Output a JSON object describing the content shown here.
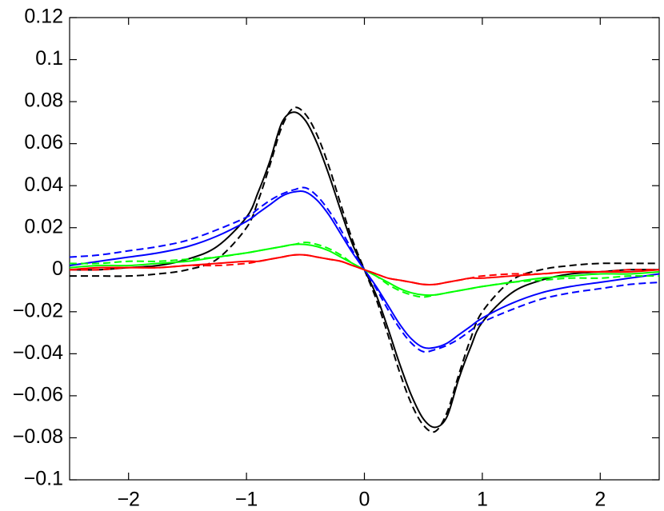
{
  "chart_data": {
    "type": "line",
    "x": [
      -2.5,
      -2.25,
      -2,
      -1.75,
      -1.5,
      -1.25,
      -1,
      -0.9,
      -0.8,
      -0.7,
      -0.6,
      -0.5,
      -0.4,
      -0.3,
      -0.2,
      -0.1,
      0,
      0.1,
      0.2,
      0.3,
      0.4,
      0.5,
      0.6,
      0.7,
      0.8,
      0.9,
      1,
      1.25,
      1.5,
      1.75,
      2,
      2.25,
      2.5
    ],
    "series": [
      {
        "color": "#000000",
        "dashed": false,
        "values": [
          0,
          0,
          0.001,
          0.002,
          0.005,
          0.011,
          0.025,
          0.037,
          0.052,
          0.07,
          0.075,
          0.071,
          0.06,
          0.045,
          0.028,
          0.012,
          0,
          -0.012,
          -0.028,
          -0.045,
          -0.06,
          -0.071,
          -0.075,
          -0.07,
          -0.052,
          -0.037,
          -0.025,
          -0.011,
          -0.005,
          -0.002,
          -0.001,
          0,
          0
        ]
      },
      {
        "color": "#000000",
        "dashed": true,
        "values": [
          -0.003,
          -0.003,
          -0.003,
          -0.002,
          0,
          0.005,
          0.02,
          0.033,
          0.05,
          0.068,
          0.077,
          0.074,
          0.064,
          0.049,
          0.031,
          0.014,
          0,
          -0.014,
          -0.031,
          -0.049,
          -0.064,
          -0.074,
          -0.077,
          -0.068,
          -0.05,
          -0.033,
          -0.02,
          -0.005,
          0,
          0.002,
          0.003,
          0.003,
          0.003
        ]
      },
      {
        "color": "#0000ff",
        "dashed": false,
        "values": [
          0.002,
          0.004,
          0.006,
          0.008,
          0.011,
          0.016,
          0.023,
          0.027,
          0.031,
          0.035,
          0.037,
          0.037,
          0.033,
          0.026,
          0.017,
          0.008,
          0,
          -0.008,
          -0.017,
          -0.026,
          -0.033,
          -0.037,
          -0.037,
          -0.035,
          -0.031,
          -0.027,
          -0.023,
          -0.016,
          -0.011,
          -0.008,
          -0.006,
          -0.004,
          -0.002
        ]
      },
      {
        "color": "#0000ff",
        "dashed": true,
        "values": [
          0.006,
          0.007,
          0.009,
          0.011,
          0.014,
          0.019,
          0.025,
          0.029,
          0.033,
          0.036,
          0.038,
          0.039,
          0.035,
          0.028,
          0.019,
          0.009,
          0,
          -0.009,
          -0.019,
          -0.028,
          -0.035,
          -0.039,
          -0.038,
          -0.036,
          -0.033,
          -0.029,
          -0.025,
          -0.019,
          -0.014,
          -0.011,
          -0.009,
          -0.007,
          -0.006
        ]
      },
      {
        "color": "#00ff00",
        "dashed": false,
        "values": [
          0.001,
          0.002,
          0.002,
          0.003,
          0.004,
          0.006,
          0.008,
          0.009,
          0.01,
          0.011,
          0.012,
          0.012,
          0.011,
          0.009,
          0.006,
          0.003,
          0,
          -0.003,
          -0.006,
          -0.009,
          -0.011,
          -0.012,
          -0.012,
          -0.011,
          -0.01,
          -0.009,
          -0.008,
          -0.006,
          -0.004,
          -0.003,
          -0.002,
          -0.002,
          -0.001
        ]
      },
      {
        "color": "#00ff00",
        "dashed": true,
        "values": [
          0.003,
          0.003,
          0.004,
          0.004,
          0.005,
          0.006,
          0.008,
          0.009,
          0.01,
          0.011,
          0.012,
          0.013,
          0.012,
          0.01,
          0.007,
          0.003,
          0,
          -0.003,
          -0.007,
          -0.01,
          -0.012,
          -0.013,
          -0.012,
          -0.011,
          -0.01,
          -0.009,
          -0.008,
          -0.006,
          -0.005,
          -0.004,
          -0.004,
          -0.003,
          -0.003
        ]
      },
      {
        "color": "#ff0000",
        "dashed": false,
        "values": [
          0,
          0.001,
          0.001,
          0.001,
          0.002,
          0.003,
          0.004,
          0.004,
          0.005,
          0.006,
          0.007,
          0.007,
          0.006,
          0.005,
          0.004,
          0.002,
          0,
          -0.002,
          -0.004,
          -0.005,
          -0.006,
          -0.007,
          -0.007,
          -0.006,
          -0.005,
          -0.004,
          -0.004,
          -0.003,
          -0.002,
          -0.001,
          -0.001,
          -0.001,
          0
        ]
      },
      {
        "color": "#ff0000",
        "dashed": true,
        "values": [
          0,
          0,
          0.001,
          0.001,
          0.002,
          0.002,
          0.003,
          0.004,
          0.005,
          0.006,
          0.007,
          0.007,
          0.006,
          0.005,
          0.004,
          0.002,
          0,
          -0.002,
          -0.004,
          -0.005,
          -0.006,
          -0.007,
          -0.007,
          -0.006,
          -0.005,
          -0.004,
          -0.003,
          -0.002,
          -0.002,
          -0.001,
          -0.001,
          0,
          0
        ]
      }
    ],
    "xlim": [
      -2.5,
      2.5
    ],
    "xticks": [
      {
        "value": -2,
        "label": "−2"
      },
      {
        "value": -1,
        "label": "−1"
      },
      0,
      1,
      2
    ],
    "ylim": [
      -0.1,
      0.12
    ],
    "yticks": [
      {
        "value": -0.1,
        "label": "−0.1"
      },
      {
        "value": -0.08,
        "label": "−0.08"
      },
      {
        "value": -0.06,
        "label": "−0.06"
      },
      {
        "value": -0.04,
        "label": "−0.04"
      },
      {
        "value": -0.02,
        "label": "−0.02"
      },
      0,
      0.02,
      0.04,
      0.06,
      0.08,
      0.1,
      0.12
    ],
    "grid": false
  }
}
